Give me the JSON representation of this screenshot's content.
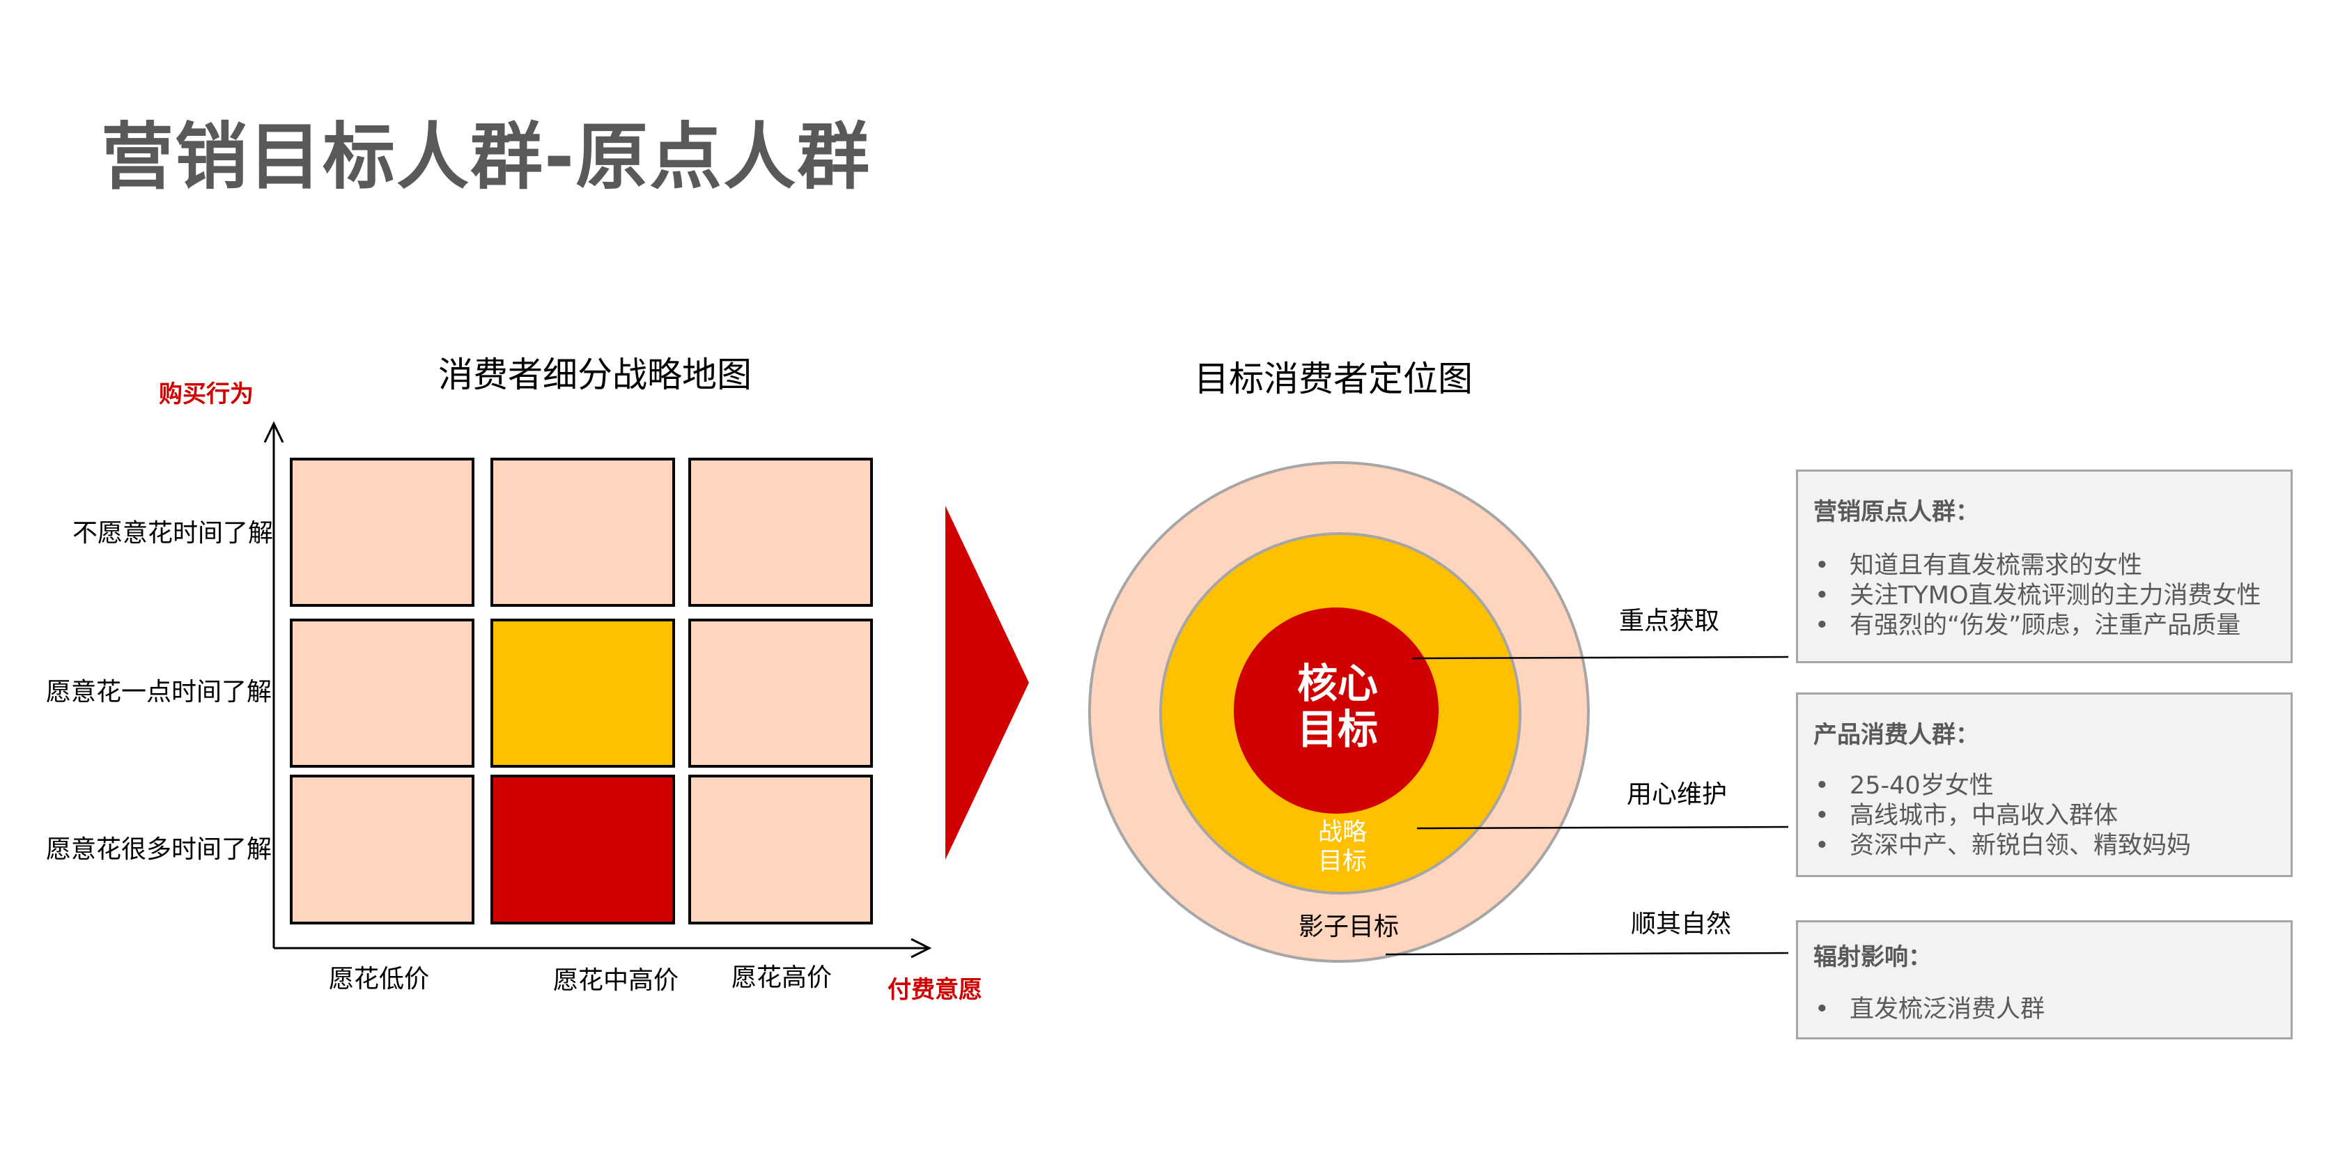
{
  "title": "营销目标人群-原点人群",
  "left_chart": {
    "title": "消费者细分战略地图",
    "y_axis_label": "购买行为",
    "x_axis_label": "付费意愿",
    "rows": [
      "不愿意花时间了解",
      "愿意花一点时间了解",
      "愿意花很多时间了解"
    ],
    "columns": [
      "愿花低价",
      "愿花中高价",
      "愿花高价"
    ],
    "highlight": {
      "core": "愿意花很多时间了解 × 愿花中高价",
      "strategic": "愿意花一点时间了解 × 愿花中高价"
    }
  },
  "right_chart": {
    "title": "目标消费者定位图",
    "rings": {
      "core": "核心目标",
      "core_line1": "核心",
      "core_line2": "目标",
      "strategic_line1": "战略",
      "strategic_line2": "目标",
      "shadow": "影子目标"
    },
    "actions": [
      "重点获取",
      "用心维护",
      "顺其自然"
    ],
    "boxes": [
      {
        "heading": "营销原点人群：",
        "bullets": [
          "知道且有直发梳需求的女性",
          "关注TYMO直发梳评测的主力消费女性",
          "有强烈的“伤发”顾虑，注重产品质量"
        ]
      },
      {
        "heading": "产品消费人群：",
        "bullets": [
          "25-40岁女性",
          "高线城市，中高收入群体",
          "资深中产、新锐白领、精致妈妈"
        ]
      },
      {
        "heading": "辐射影响：",
        "bullets": [
          "直发梳泛消费人群"
        ]
      }
    ]
  },
  "colors": {
    "light": "#ffd5be",
    "strategic": "#ffc000",
    "core": "#d00000",
    "title": "#595959",
    "box_bg": "#f2f2f2"
  },
  "bullet_char": "•"
}
